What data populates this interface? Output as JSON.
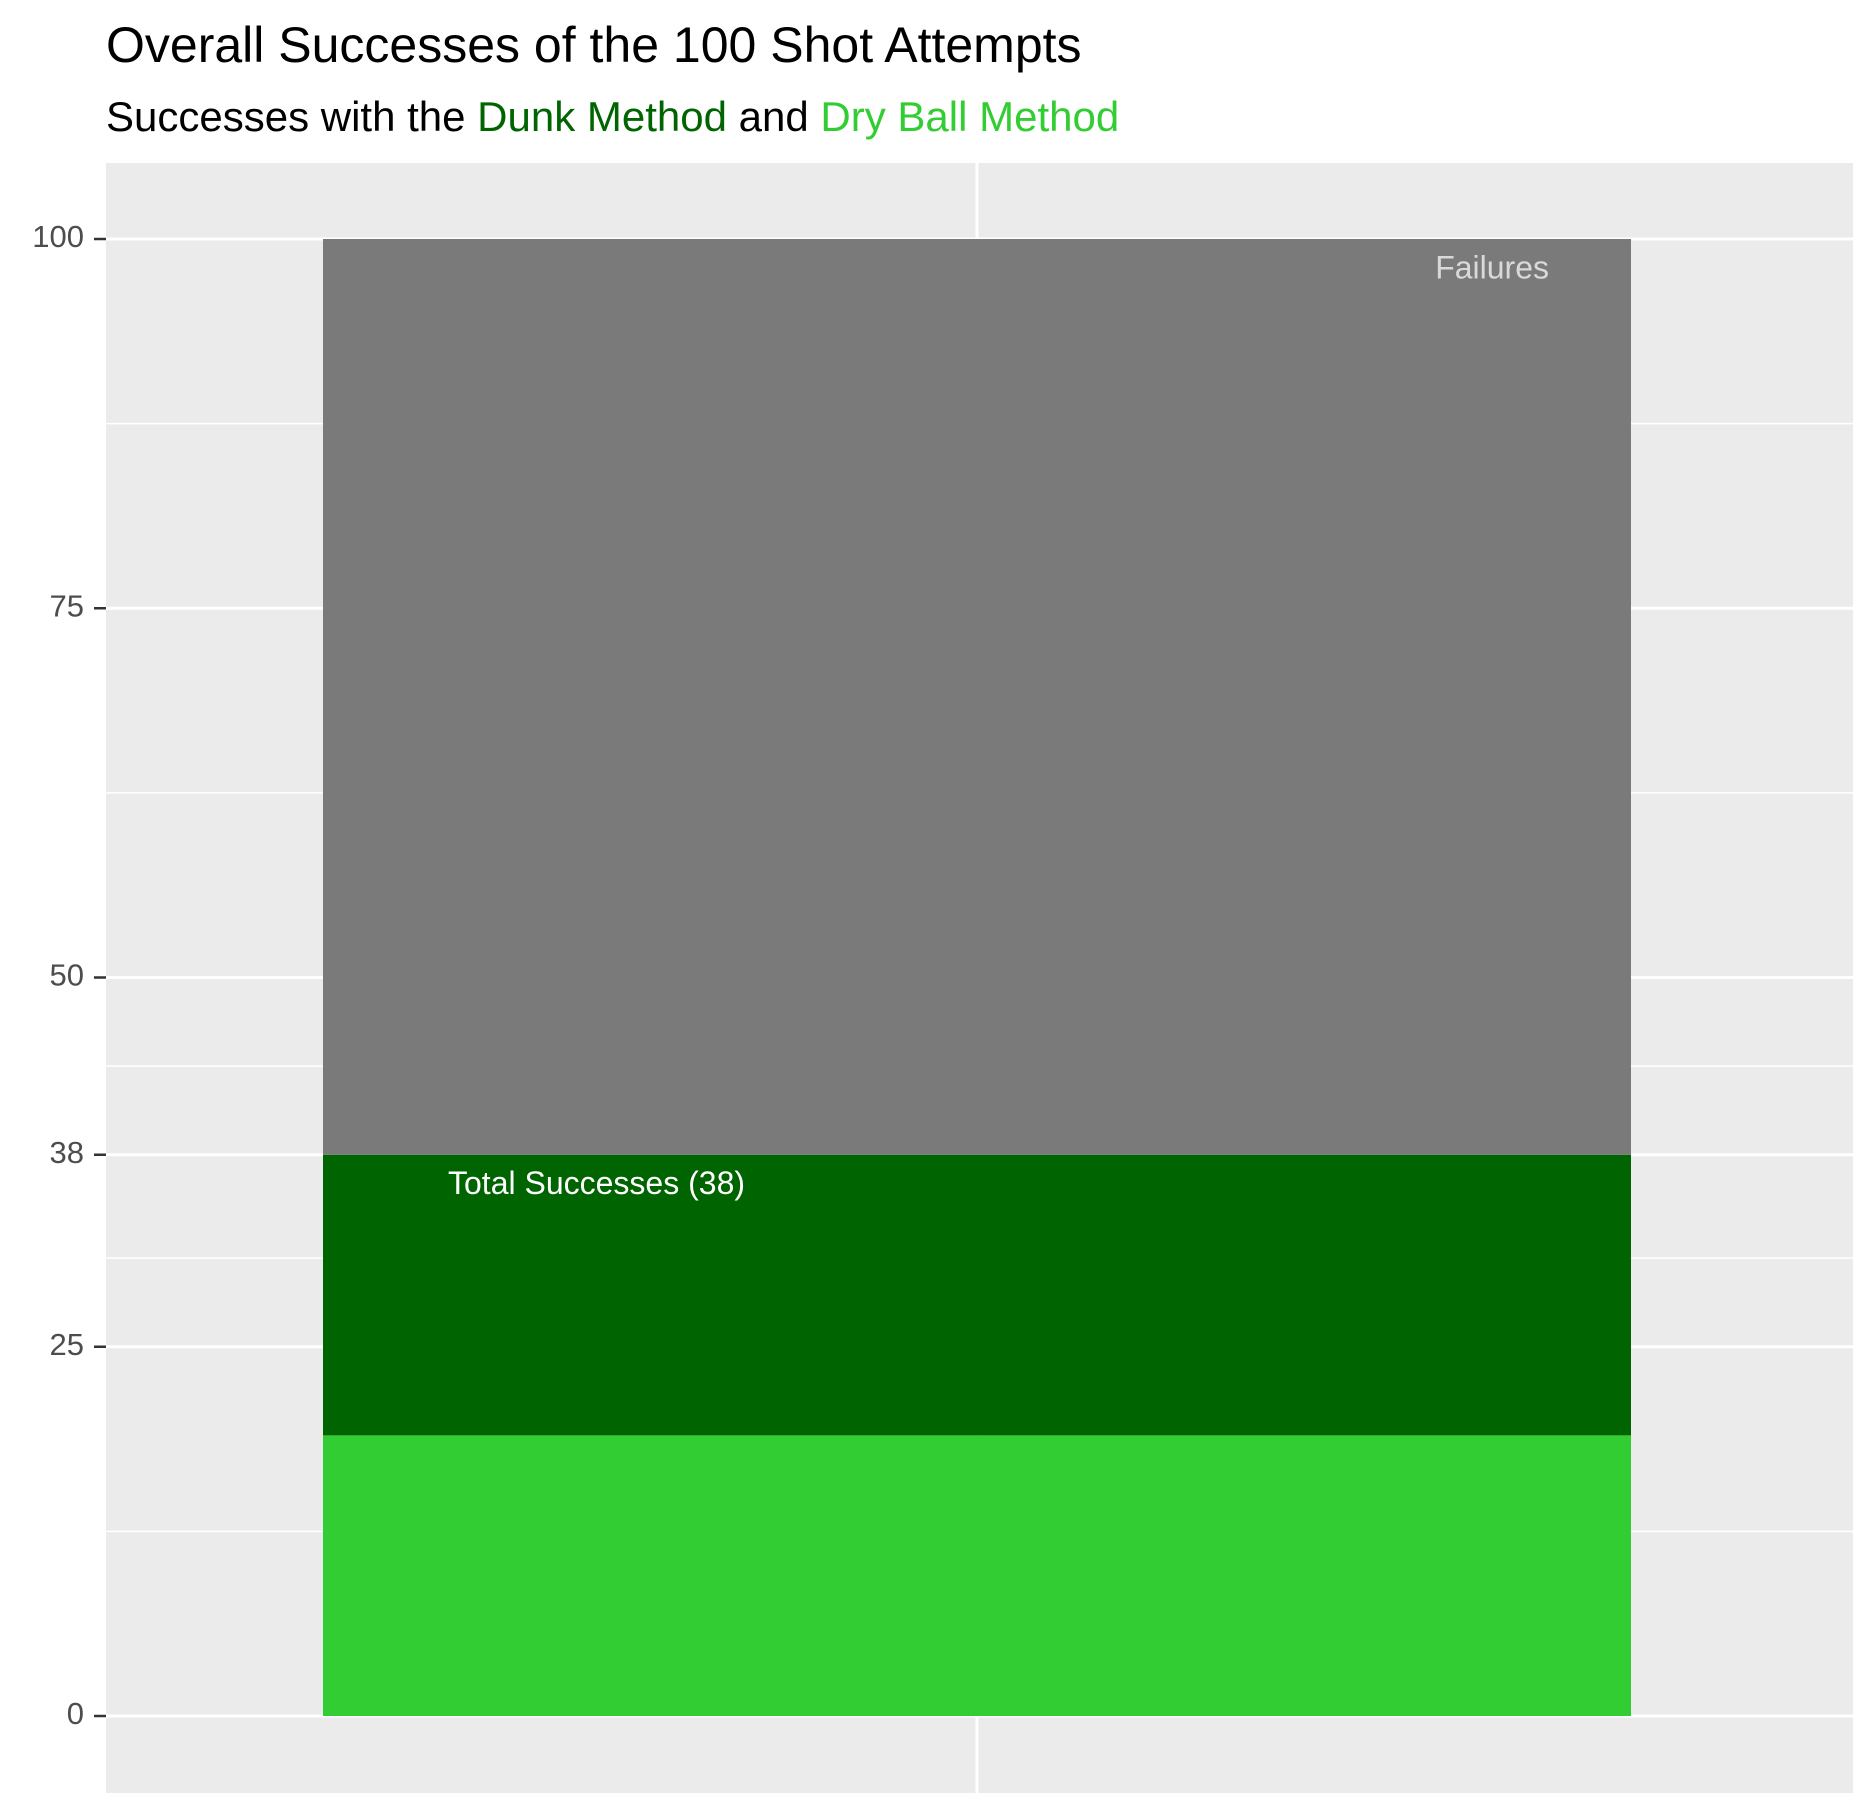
{
  "chart_data": {
    "type": "bar",
    "stacked": true,
    "title": "Overall Successes of the 100 Shot Attempts",
    "subtitle": {
      "parts": [
        {
          "text": "Successes with the ",
          "color": "#000000"
        },
        {
          "text": "Dunk Method",
          "color": "#006400"
        },
        {
          "text": " and ",
          "color": "#000000"
        },
        {
          "text": "Dry Ball Method",
          "color": "#32CD32"
        }
      ]
    },
    "xlabel": "",
    "ylabel": "",
    "ylim": [
      0,
      105
    ],
    "yticks": [
      0,
      25,
      38,
      50,
      75,
      100
    ],
    "minor_gridlines": [
      12.5,
      31,
      44,
      62.5,
      87.5
    ],
    "grid": true,
    "legend": "none",
    "segments": [
      {
        "name": "Dry Ball Method",
        "start": 0,
        "end": 19,
        "color": "#32CD32",
        "label": ""
      },
      {
        "name": "Dunk Method",
        "start": 19,
        "end": 38,
        "color": "#006400",
        "label": "Total Successes (38)",
        "label_color": "#ffffff"
      },
      {
        "name": "Failures",
        "start": 38,
        "end": 100,
        "color": "#7a7a7a",
        "label": "Failures",
        "label_color": "#d9d9d9"
      }
    ],
    "panel_color": "#ebebeb",
    "grid_color": "#ffffff"
  }
}
